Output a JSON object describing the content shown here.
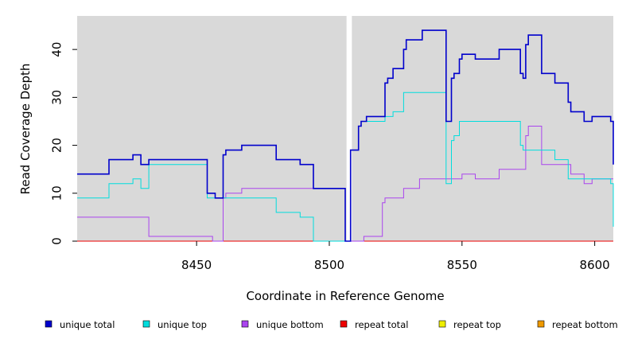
{
  "chart_data": {
    "type": "line",
    "step": true,
    "title": "",
    "xlabel": "Coordinate in Reference Genome",
    "ylabel": "Read Coverage Depth",
    "xlim": [
      8405,
      8607
    ],
    "ylim": [
      0,
      47
    ],
    "x_ticks": [
      8450,
      8500,
      8550,
      8600
    ],
    "y_ticks": [
      0,
      10,
      20,
      30,
      40
    ],
    "gap": [
      8506.5,
      8508.5
    ],
    "legend_position": "bottom",
    "series": [
      {
        "name": "unique total",
        "color": "#0000cc",
        "points": [
          [
            8405,
            14
          ],
          [
            8417,
            14
          ],
          [
            8417,
            17
          ],
          [
            8426,
            17
          ],
          [
            8426,
            18
          ],
          [
            8429,
            18
          ],
          [
            8429,
            16
          ],
          [
            8432,
            16
          ],
          [
            8432,
            17
          ],
          [
            8454,
            17
          ],
          [
            8454,
            10
          ],
          [
            8457,
            10
          ],
          [
            8457,
            9
          ],
          [
            8460,
            9
          ],
          [
            8460,
            18
          ],
          [
            8461,
            18
          ],
          [
            8461,
            19
          ],
          [
            8467,
            19
          ],
          [
            8467,
            20
          ],
          [
            8480,
            20
          ],
          [
            8480,
            17
          ],
          [
            8489,
            17
          ],
          [
            8489,
            16
          ],
          [
            8494,
            16
          ],
          [
            8494,
            11
          ],
          [
            8506,
            11
          ],
          [
            8506,
            0
          ],
          [
            8508,
            0
          ],
          [
            8508,
            19
          ],
          [
            8511,
            19
          ],
          [
            8511,
            24
          ],
          [
            8512,
            24
          ],
          [
            8512,
            25
          ],
          [
            8514,
            25
          ],
          [
            8514,
            26
          ],
          [
            8521,
            26
          ],
          [
            8521,
            33
          ],
          [
            8522,
            33
          ],
          [
            8522,
            34
          ],
          [
            8524,
            34
          ],
          [
            8524,
            36
          ],
          [
            8528,
            36
          ],
          [
            8528,
            40
          ],
          [
            8529,
            40
          ],
          [
            8529,
            42
          ],
          [
            8535,
            42
          ],
          [
            8535,
            44
          ],
          [
            8544,
            44
          ],
          [
            8544,
            25
          ],
          [
            8546,
            25
          ],
          [
            8546,
            34
          ],
          [
            8547,
            34
          ],
          [
            8547,
            35
          ],
          [
            8549,
            35
          ],
          [
            8549,
            38
          ],
          [
            8550,
            38
          ],
          [
            8550,
            39
          ],
          [
            8555,
            39
          ],
          [
            8555,
            38
          ],
          [
            8564,
            38
          ],
          [
            8564,
            40
          ],
          [
            8572,
            40
          ],
          [
            8572,
            35
          ],
          [
            8573,
            35
          ],
          [
            8573,
            34
          ],
          [
            8574,
            34
          ],
          [
            8574,
            41
          ],
          [
            8575,
            41
          ],
          [
            8575,
            43
          ],
          [
            8580,
            43
          ],
          [
            8580,
            35
          ],
          [
            8585,
            35
          ],
          [
            8585,
            33
          ],
          [
            8590,
            33
          ],
          [
            8590,
            29
          ],
          [
            8591,
            29
          ],
          [
            8591,
            27
          ],
          [
            8596,
            27
          ],
          [
            8596,
            25
          ],
          [
            8599,
            25
          ],
          [
            8599,
            26
          ],
          [
            8606,
            26
          ],
          [
            8606,
            25
          ],
          [
            8607,
            25
          ],
          [
            8607,
            16
          ]
        ]
      },
      {
        "name": "unique top",
        "color": "#00dddd",
        "points": [
          [
            8405,
            9
          ],
          [
            8417,
            9
          ],
          [
            8417,
            12
          ],
          [
            8426,
            12
          ],
          [
            8426,
            13
          ],
          [
            8429,
            13
          ],
          [
            8429,
            11
          ],
          [
            8432,
            11
          ],
          [
            8432,
            16
          ],
          [
            8454,
            16
          ],
          [
            8454,
            9
          ],
          [
            8480,
            9
          ],
          [
            8480,
            6
          ],
          [
            8489,
            6
          ],
          [
            8489,
            5
          ],
          [
            8494,
            5
          ],
          [
            8494,
            0
          ],
          [
            8506,
            0
          ],
          [
            8508,
            0
          ],
          [
            8508,
            19
          ],
          [
            8511,
            19
          ],
          [
            8511,
            24
          ],
          [
            8512,
            24
          ],
          [
            8512,
            25
          ],
          [
            8521,
            25
          ],
          [
            8521,
            26
          ],
          [
            8524,
            26
          ],
          [
            8524,
            27
          ],
          [
            8528,
            27
          ],
          [
            8528,
            31
          ],
          [
            8544,
            31
          ],
          [
            8544,
            12
          ],
          [
            8546,
            12
          ],
          [
            8546,
            21
          ],
          [
            8547,
            21
          ],
          [
            8547,
            22
          ],
          [
            8549,
            22
          ],
          [
            8549,
            25
          ],
          [
            8572,
            25
          ],
          [
            8572,
            20
          ],
          [
            8573,
            20
          ],
          [
            8573,
            19
          ],
          [
            8585,
            19
          ],
          [
            8585,
            17
          ],
          [
            8590,
            17
          ],
          [
            8590,
            13
          ],
          [
            8599,
            13
          ],
          [
            8599,
            13
          ],
          [
            8606,
            13
          ],
          [
            8606,
            12
          ],
          [
            8607,
            12
          ],
          [
            8607,
            3
          ]
        ]
      },
      {
        "name": "unique bottom",
        "color": "#aa44ee",
        "points": [
          [
            8405,
            5
          ],
          [
            8432,
            5
          ],
          [
            8432,
            1
          ],
          [
            8456,
            1
          ],
          [
            8456,
            0
          ],
          [
            8460,
            0
          ],
          [
            8460,
            9
          ],
          [
            8461,
            9
          ],
          [
            8461,
            10
          ],
          [
            8467,
            10
          ],
          [
            8467,
            11
          ],
          [
            8506,
            11
          ],
          [
            8506,
            0
          ],
          [
            8513,
            0
          ],
          [
            8513,
            1
          ],
          [
            8520,
            1
          ],
          [
            8520,
            8
          ],
          [
            8521,
            8
          ],
          [
            8521,
            9
          ],
          [
            8528,
            9
          ],
          [
            8528,
            11
          ],
          [
            8534,
            11
          ],
          [
            8534,
            13
          ],
          [
            8550,
            13
          ],
          [
            8550,
            14
          ],
          [
            8555,
            14
          ],
          [
            8555,
            13
          ],
          [
            8564,
            13
          ],
          [
            8564,
            15
          ],
          [
            8574,
            15
          ],
          [
            8574,
            22
          ],
          [
            8575,
            22
          ],
          [
            8575,
            24
          ],
          [
            8580,
            24
          ],
          [
            8580,
            16
          ],
          [
            8591,
            16
          ],
          [
            8591,
            14
          ],
          [
            8596,
            14
          ],
          [
            8596,
            12
          ],
          [
            8599,
            12
          ],
          [
            8599,
            13
          ],
          [
            8606,
            13
          ],
          [
            8606,
            13
          ],
          [
            8607,
            13
          ],
          [
            8607,
            13
          ]
        ]
      },
      {
        "name": "repeat total",
        "color": "#ee0000",
        "points": [
          [
            8405,
            0
          ],
          [
            8607,
            0
          ]
        ]
      },
      {
        "name": "repeat top",
        "color": "#eeee00",
        "points": [
          [
            8405,
            0
          ],
          [
            8607,
            0
          ]
        ]
      },
      {
        "name": "repeat bottom",
        "color": "#ee9900",
        "points": [
          [
            8405,
            0
          ],
          [
            8607,
            0
          ]
        ]
      }
    ]
  }
}
